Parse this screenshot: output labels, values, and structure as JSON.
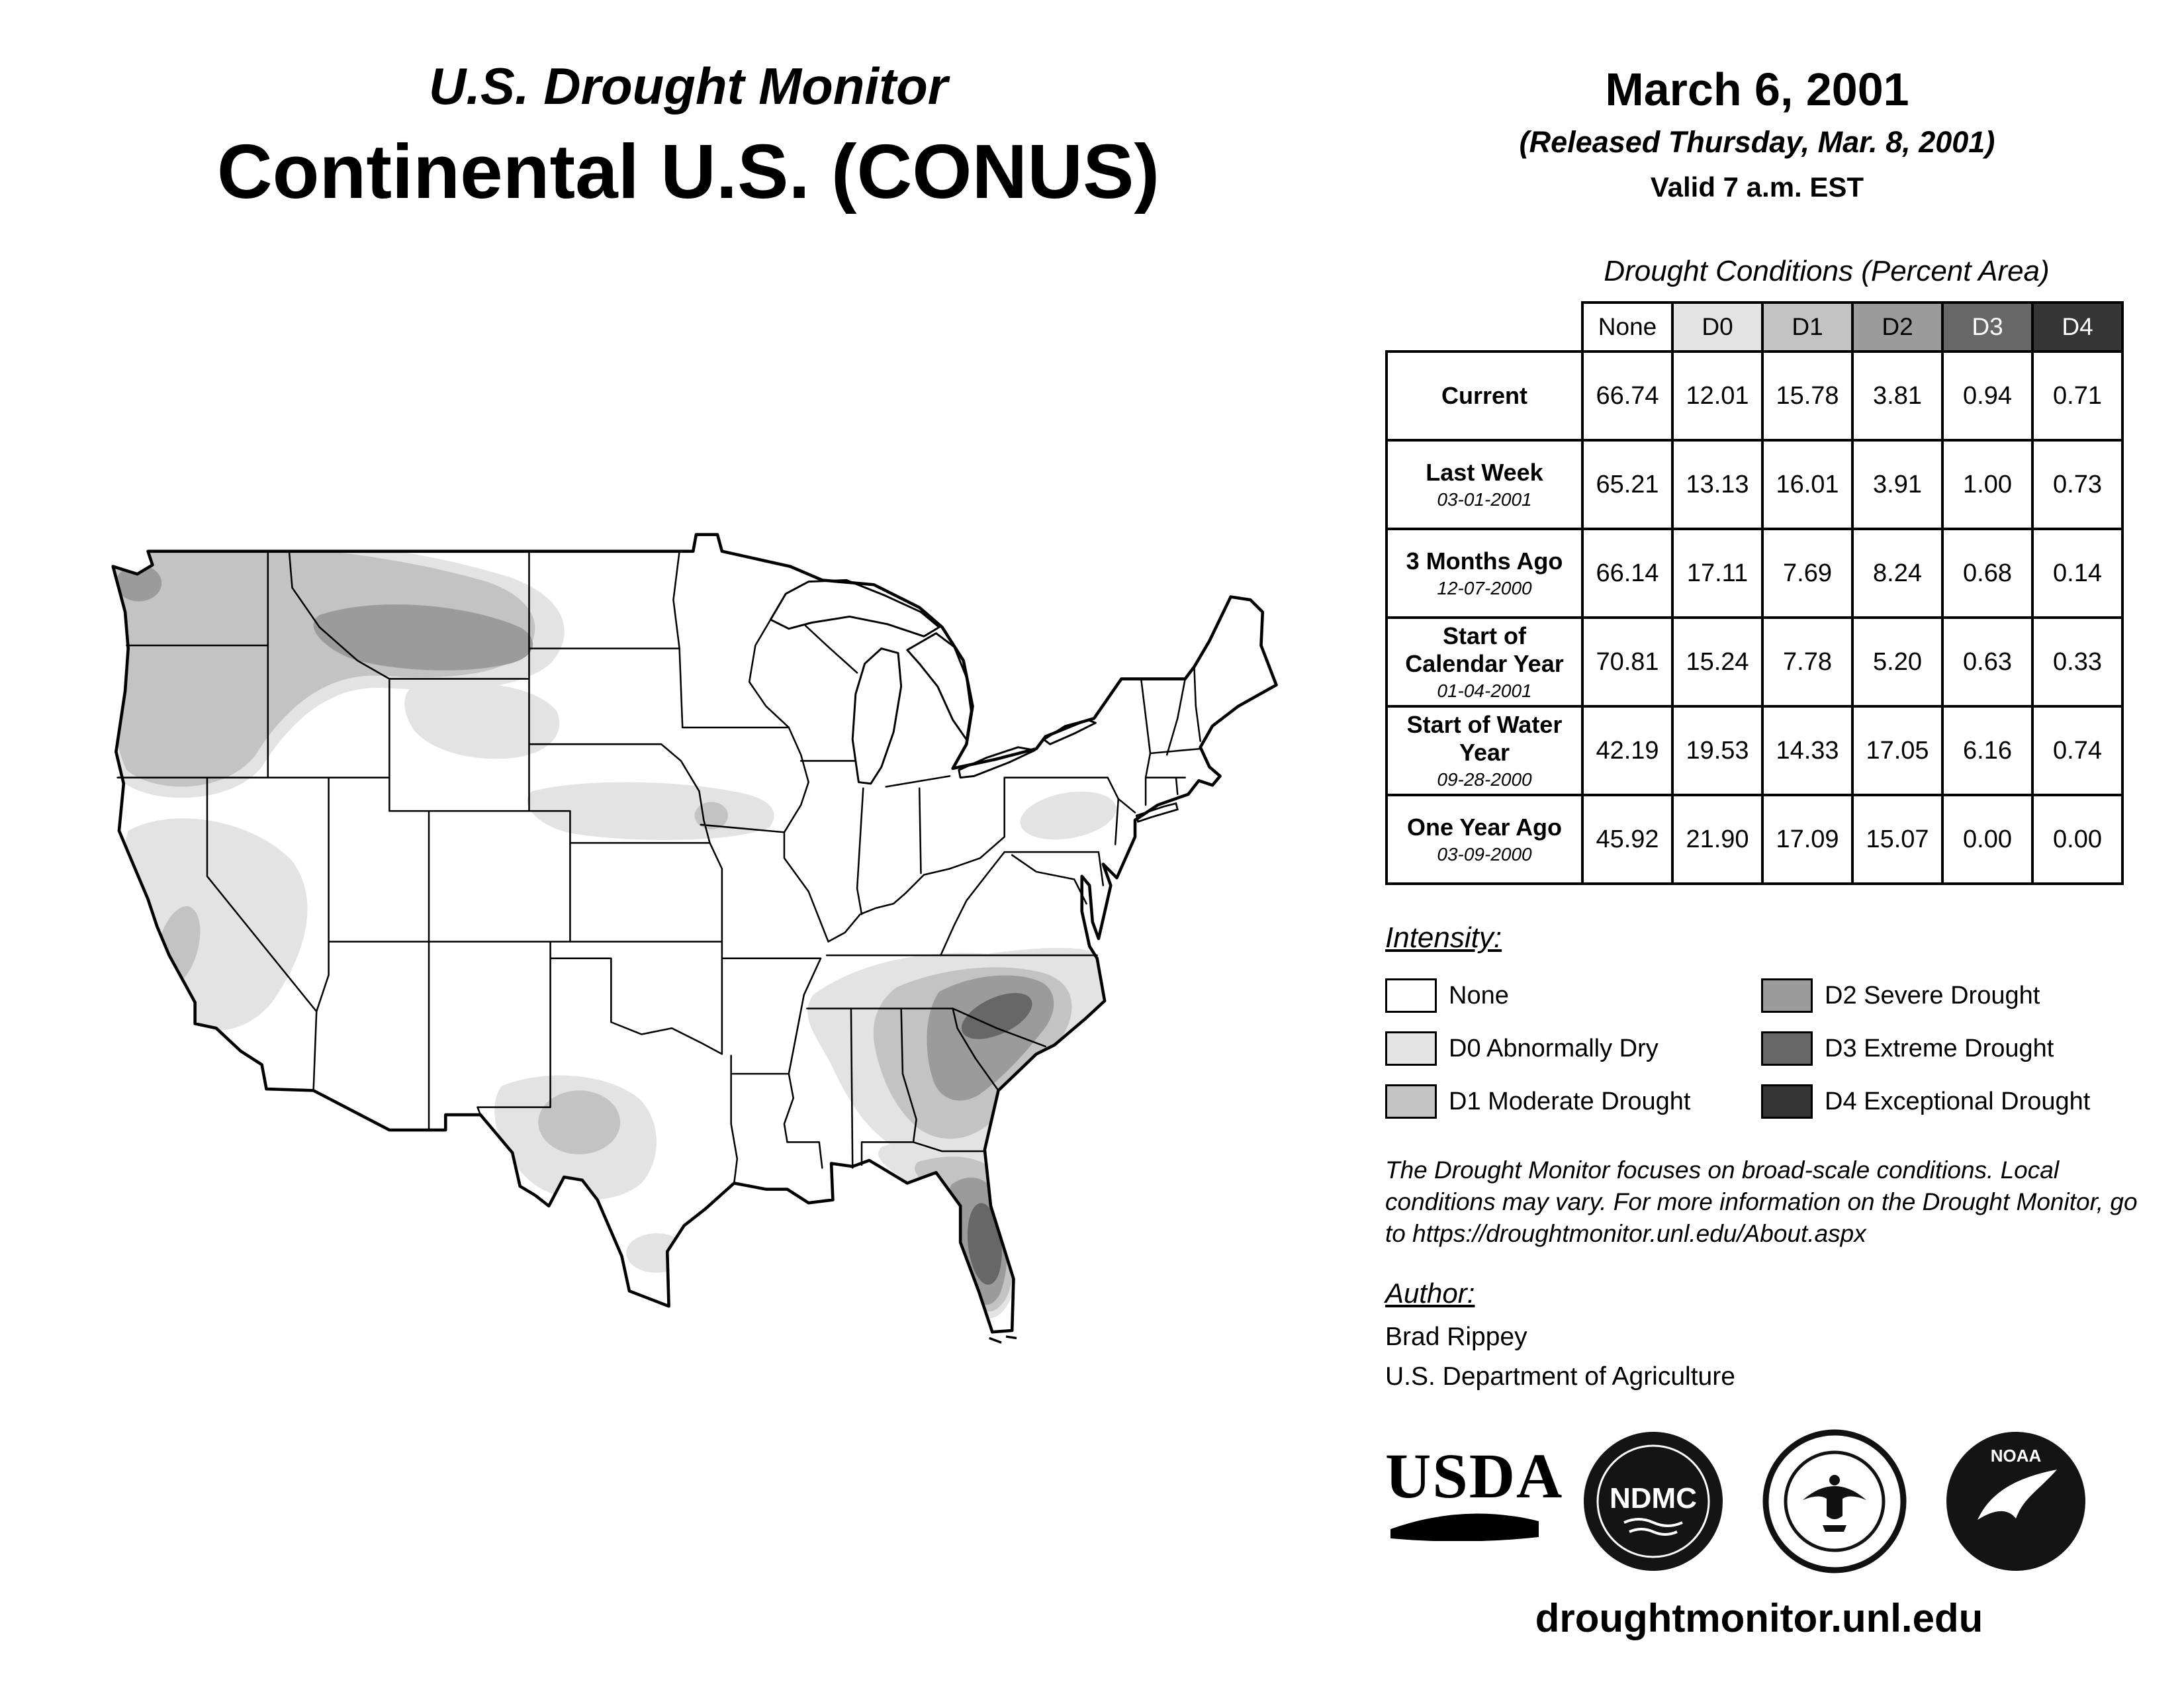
{
  "header": {
    "supertitle": "U.S. Drought Monitor",
    "title": "Continental U.S. (CONUS)"
  },
  "release": {
    "date": "March 6, 2001",
    "released": "(Released Thursday, Mar. 8, 2001)",
    "valid": "Valid 7 a.m. EST"
  },
  "table": {
    "title": "Drought Conditions (Percent Area)",
    "columns": [
      "None",
      "D0",
      "D1",
      "D2",
      "D3",
      "D4"
    ],
    "rows": [
      {
        "label": "Current",
        "sublabel": "",
        "values": [
          "66.74",
          "12.01",
          "15.78",
          "3.81",
          "0.94",
          "0.71"
        ]
      },
      {
        "label": "Last Week",
        "sublabel": "03-01-2001",
        "values": [
          "65.21",
          "13.13",
          "16.01",
          "3.91",
          "1.00",
          "0.73"
        ]
      },
      {
        "label": "3 Months Ago",
        "sublabel": "12-07-2000",
        "values": [
          "66.14",
          "17.11",
          "7.69",
          "8.24",
          "0.68",
          "0.14"
        ]
      },
      {
        "label": "Start of Calendar Year",
        "sublabel": "01-04-2001",
        "values": [
          "70.81",
          "15.24",
          "7.78",
          "5.20",
          "0.63",
          "0.33"
        ]
      },
      {
        "label": "Start of Water Year",
        "sublabel": "09-28-2000",
        "values": [
          "42.19",
          "19.53",
          "14.33",
          "17.05",
          "6.16",
          "0.74"
        ]
      },
      {
        "label": "One Year Ago",
        "sublabel": "03-09-2000",
        "values": [
          "45.92",
          "21.90",
          "17.09",
          "15.07",
          "0.00",
          "0.00"
        ]
      }
    ]
  },
  "legend": {
    "title": "Intensity:",
    "items": [
      {
        "label": "None",
        "color": "#ffffff"
      },
      {
        "label": "D0 Abnormally Dry",
        "color": "#e3e3e3"
      },
      {
        "label": "D1 Moderate Drought",
        "color": "#c3c3c3"
      },
      {
        "label": "D2 Severe Drought",
        "color": "#9b9b9b"
      },
      {
        "label": "D3 Extreme Drought",
        "color": "#676767"
      },
      {
        "label": "D4 Exceptional Drought",
        "color": "#353535"
      }
    ]
  },
  "disclaimer": "The Drought Monitor focuses on broad-scale conditions. Local conditions may vary. For more information on the Drought Monitor, go to https://droughtmonitor.unl.edu/About.aspx",
  "author": {
    "heading": "Author:",
    "name": "Brad Rippey",
    "organization": "U.S. Department of Agriculture"
  },
  "logos": {
    "usda": "USDA",
    "ndmc": "NDMC",
    "noaa": "NOAA"
  },
  "footer": {
    "url": "droughtmonitor.unl.edu"
  }
}
